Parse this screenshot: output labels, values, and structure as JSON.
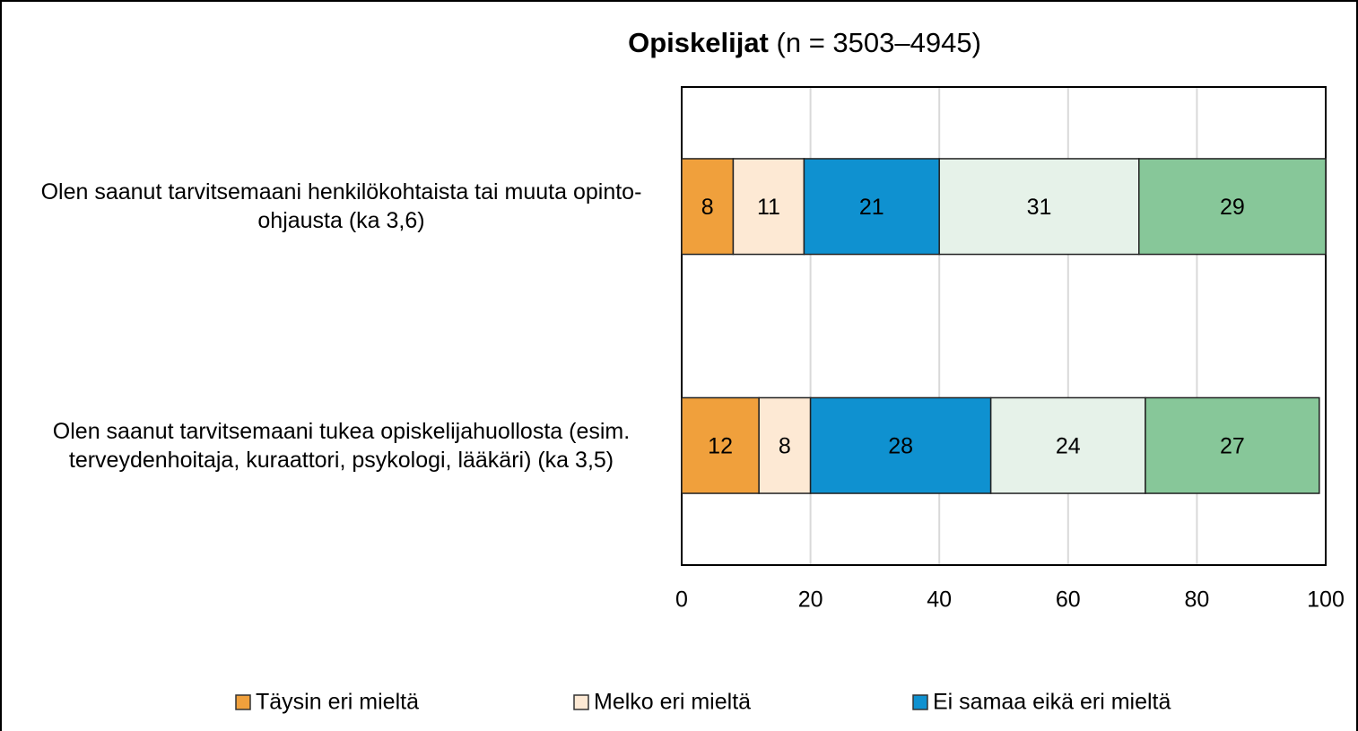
{
  "chart_data": {
    "type": "stacked-bar-horizontal",
    "title": "Opiskelijat",
    "subtitle": "(n = 3503–4945)",
    "categories": [
      "Olen saanut tarvitsemaani henkilökohtaista tai muuta opinto-ohjausta (ka 3,6)",
      "Olen saanut tarvitsemaani tukea opiskelijahuollosta (esim. terveydenhoitaja, kuraattori, psykologi, lääkäri) (ka 3,5)"
    ],
    "series": [
      {
        "name": "Täysin eri mieltä",
        "color": "#f0a03c",
        "values": [
          8,
          12
        ]
      },
      {
        "name": "Melko eri mieltä",
        "color": "#fde9d4",
        "values": [
          11,
          8
        ]
      },
      {
        "name": "Ei samaa eikä eri mieltä",
        "color": "#0f91d0",
        "values": [
          21,
          28
        ]
      },
      {
        "color": "#e6f2e9",
        "values": [
          31,
          24
        ]
      },
      {
        "color": "#87c799",
        "values": [
          29,
          27
        ]
      }
    ],
    "xlim": [
      0,
      100
    ],
    "xticks": [
      0,
      20,
      40,
      60,
      80,
      100
    ],
    "grid": true
  }
}
